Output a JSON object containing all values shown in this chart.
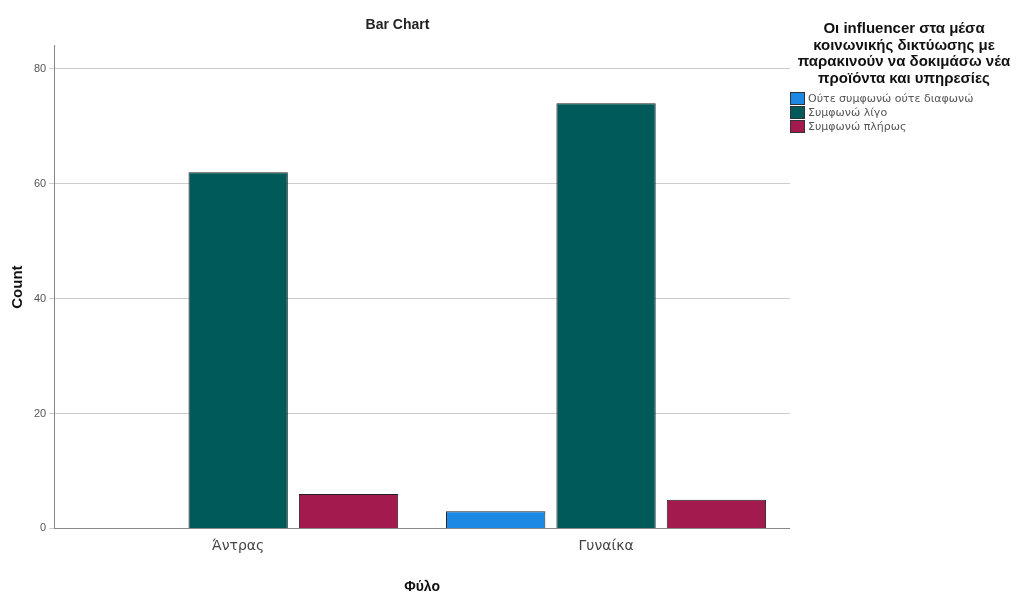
{
  "chart_data": {
    "type": "bar",
    "title": "Bar Chart",
    "xlabel": "Φύλο",
    "ylabel": "Count",
    "legend_title": "Οι influencer στα μέσα κοινωνικής δικτύωσης με παρακινούν να δοκιμάσω νέα προϊόντα και υπηρεσίες",
    "categories": [
      "Άντρας",
      "Γυναίκα"
    ],
    "series": [
      {
        "name": "Ούτε συμφωνώ ούτε διαφωνώ",
        "color": "#1e88e5",
        "values": [
          null,
          3
        ]
      },
      {
        "name": "Συμφωνώ λίγο",
        "color": "#005a5a",
        "values": [
          62,
          74
        ]
      },
      {
        "name": "Συμφωνώ πλήρως",
        "color": "#a31a4f",
        "values": [
          6,
          5
        ]
      }
    ],
    "ylim": [
      0,
      84
    ],
    "yticks": [
      0,
      20,
      40,
      60,
      80
    ],
    "grid": "y",
    "legend": "top right"
  }
}
